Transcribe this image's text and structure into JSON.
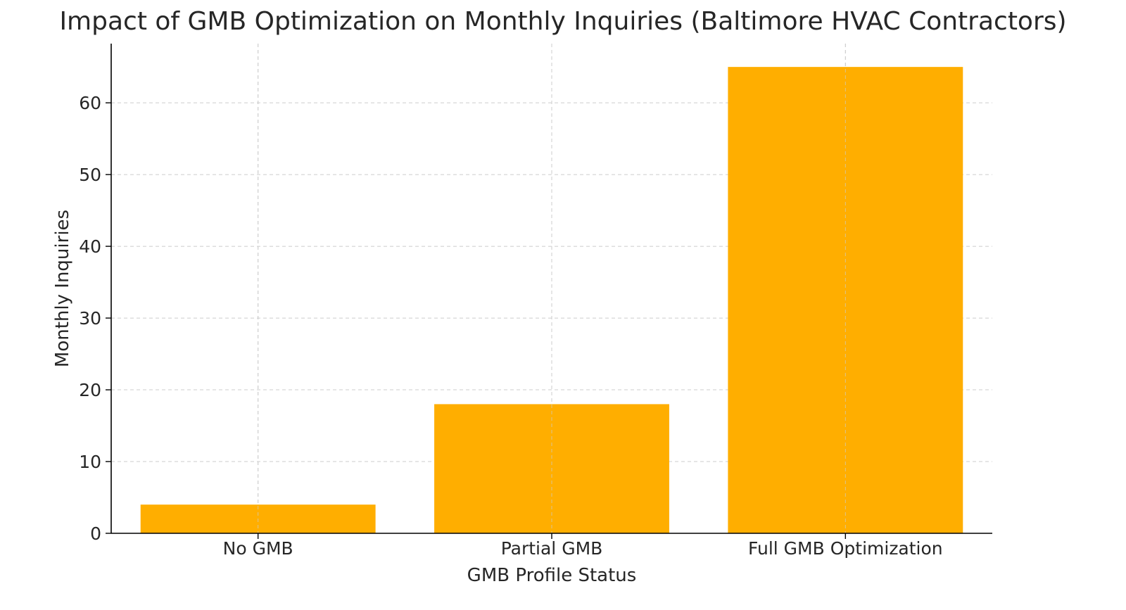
{
  "chart_data": {
    "type": "bar",
    "title": "Impact of GMB Optimization on Monthly Inquiries (Baltimore HVAC Contractors)",
    "xlabel": "GMB Profile Status",
    "ylabel": "Monthly Inquiries",
    "categories": [
      "No GMB",
      "Partial GMB",
      "Full GMB Optimization"
    ],
    "values": [
      4,
      18,
      65
    ],
    "ylim": [
      0,
      68.25
    ],
    "yticks": [
      0,
      10,
      20,
      30,
      40,
      50,
      60
    ],
    "grid": true,
    "bar_color": "#FFAE00"
  }
}
